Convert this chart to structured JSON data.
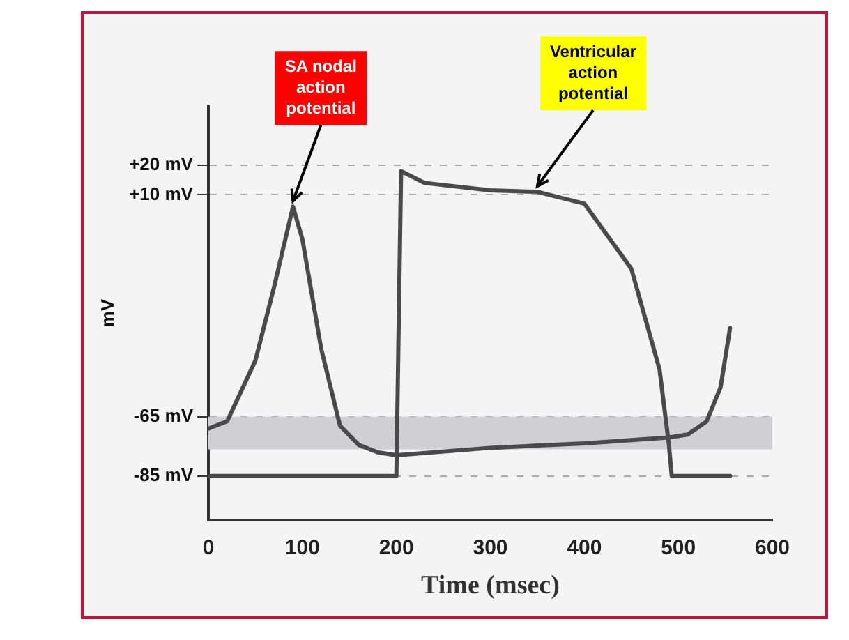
{
  "chart_data": {
    "type": "line",
    "xlabel": "Time (msec)",
    "ylabel": "mV",
    "xlim": [
      0,
      600
    ],
    "xticks": [
      0,
      100,
      200,
      300,
      400,
      500,
      600
    ],
    "ylim": [
      -100,
      40
    ],
    "yticks": [
      {
        "value": -85,
        "label": "-85 mV"
      },
      {
        "value": -65,
        "label": "-65 mV"
      },
      {
        "value": 10,
        "label": "+10 mV"
      },
      {
        "value": 20,
        "label": "+20 mV"
      }
    ],
    "grid": "y",
    "legend": false,
    "marker": "none",
    "line_style": "solid",
    "series": [
      {
        "color": "#4a4a4a",
        "x": [
          0,
          20,
          50,
          70,
          90,
          100,
          120,
          140,
          160,
          180,
          200,
          300,
          400,
          490,
          510,
          530,
          545,
          555
        ],
        "values": [
          -69,
          -66.5,
          -46,
          -21,
          6,
          -5,
          -42,
          -68,
          -74.5,
          -77,
          -78,
          -75.5,
          -74,
          -72,
          -71,
          -66.6,
          -55,
          -35
        ]
      },
      {
        "color": "#4a4a4a",
        "x": [
          0,
          199,
          200,
          205,
          230,
          300,
          350,
          400,
          450,
          480,
          490,
          493,
          555
        ],
        "values": [
          -85,
          -85,
          -85,
          18,
          14,
          11.5,
          11,
          7,
          -15,
          -49,
          -74.5,
          -85,
          -85
        ]
      }
    ],
    "bands": [
      {
        "axis": "y",
        "from": -76,
        "to": -65,
        "color": "#cfcfd4"
      }
    ],
    "annotations": [
      {
        "text": "SA nodal action potential",
        "x": 90,
        "y": 6
      },
      {
        "text": "Ventricular action potential",
        "x": 350,
        "y": 11
      }
    ]
  }
}
